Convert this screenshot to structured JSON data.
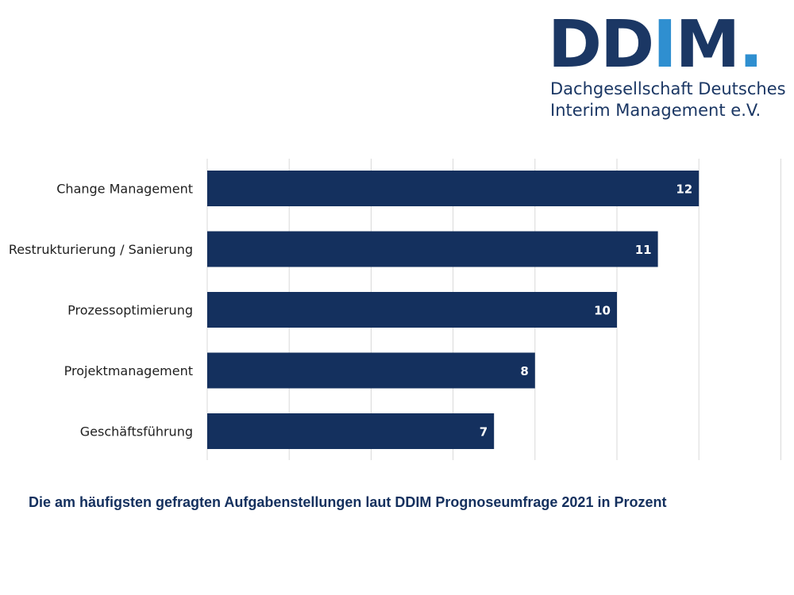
{
  "logo": {
    "mark_main": "DD",
    "mark_accent": "I",
    "mark_tail": "M",
    "mark_dot": ".",
    "line1": "Dachgesellschaft Deutsches",
    "line2": "Interim Management e.V."
  },
  "caption": "Die am häufigsten gefragten Aufgabenstellungen laut DDIM Prognoseumfrage 2021 in Prozent",
  "colors": {
    "bar": "#14305e",
    "grid": "#d9d9d9",
    "bar_label": "#ffffff",
    "text": "#1f1f1f",
    "logo_dark": "#1b3764",
    "logo_accent": "#2f8fd0"
  },
  "chart_data": {
    "type": "bar",
    "orientation": "horizontal",
    "categories": [
      "Change Management",
      "Restrukturierung / Sanierung",
      "Prozessoptimierung",
      "Projektmanagement",
      "Geschäftsführung"
    ],
    "values": [
      12,
      11,
      10,
      8,
      7
    ],
    "data_labels": [
      "12",
      "11",
      "10",
      "8",
      "7"
    ],
    "xlim": [
      0,
      14
    ],
    "gridlines": [
      0,
      2,
      4,
      6,
      8,
      10,
      12,
      14
    ],
    "grid": true,
    "tick_labels_shown": false
  }
}
